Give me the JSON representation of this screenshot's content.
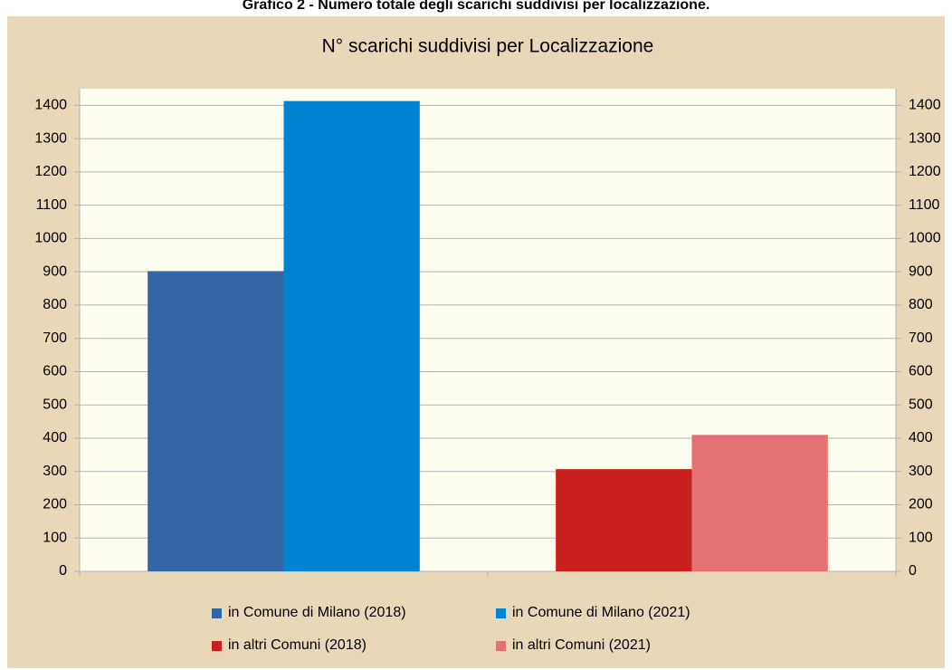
{
  "caption": "Grafico 2 - Numero totale degli scarichi suddivisi per localizzazione.",
  "chart_data": {
    "type": "bar",
    "title": "N° scarichi suddivisi per Localizzazione",
    "categories": [
      null,
      null
    ],
    "series": [
      {
        "name": "in Comune di Milano (2018)",
        "color": "#3465a4",
        "values": [
          902,
          null
        ]
      },
      {
        "name": "in Comune di Milano (2021)",
        "color": "#0084d1",
        "values": [
          1413,
          null
        ]
      },
      {
        "name": "in altri Comuni (2018)",
        "color": "#c9211e",
        "values": [
          null,
          307
        ]
      },
      {
        "name": "in altri Comuni (2021)",
        "color": "#e57373",
        "values": [
          null,
          410
        ]
      }
    ],
    "ylim": [
      0,
      1450
    ],
    "yticks": [
      0,
      100,
      200,
      300,
      400,
      500,
      600,
      700,
      800,
      900,
      1000,
      1100,
      1200,
      1300,
      1400
    ],
    "y2lim": [
      0,
      1450
    ],
    "y2ticks": [
      0,
      100,
      200,
      300,
      400,
      500,
      600,
      700,
      800,
      900,
      1000,
      1100,
      1200,
      1300,
      1400
    ],
    "grid": true,
    "legend": "bottom"
  }
}
